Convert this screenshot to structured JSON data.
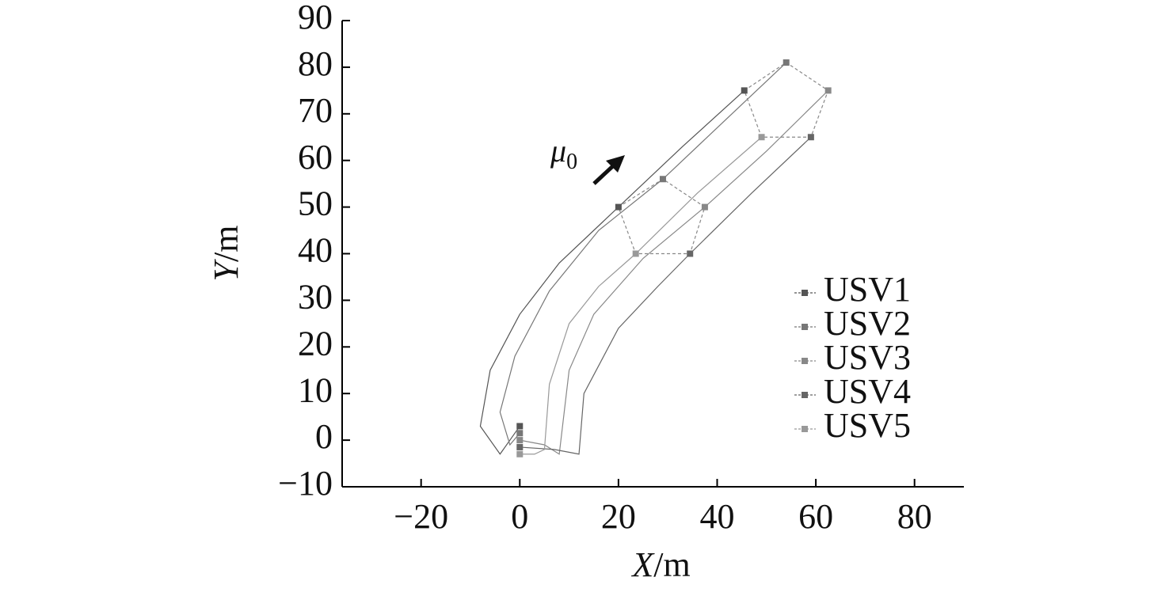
{
  "chart_data": {
    "type": "line",
    "xlabel": {
      "var": "X",
      "unit": "/m"
    },
    "ylabel": {
      "var": "Y",
      "unit": "/m"
    },
    "annotation": {
      "text": "μ",
      "subscript": "0"
    },
    "xlim": [
      -36,
      90
    ],
    "ylim": [
      -10,
      90
    ],
    "xticks": [
      {
        "value": -20,
        "label": "−20"
      },
      0,
      20,
      40,
      60,
      80
    ],
    "yticks": [
      {
        "value": -10,
        "label": "−10"
      },
      0,
      10,
      20,
      30,
      40,
      50,
      60,
      70,
      80,
      90
    ],
    "marker_indices": [
      0,
      6,
      8
    ],
    "series": [
      {
        "name": "USV1",
        "color": "#555555",
        "x": [
          0,
          -4,
          -8,
          -6,
          0,
          8,
          20,
          33,
          45.5
        ],
        "y": [
          3,
          -3,
          3,
          15,
          27,
          38,
          50,
          63,
          75
        ]
      },
      {
        "name": "USV2",
        "color": "#777777",
        "x": [
          0,
          -2,
          -4,
          -1,
          6,
          16,
          29,
          41,
          54
        ],
        "y": [
          1.5,
          -1,
          6,
          18,
          32,
          45,
          56,
          68,
          81
        ]
      },
      {
        "name": "USV3",
        "color": "#888888",
        "x": [
          0,
          5,
          8,
          10,
          15,
          25,
          37.5,
          50,
          62.5
        ],
        "y": [
          0,
          -1,
          -3,
          15,
          27,
          39,
          50,
          62,
          75
        ]
      },
      {
        "name": "USV4",
        "color": "#666666",
        "x": [
          0,
          7,
          12,
          13,
          20,
          28,
          34.5,
          47,
          59
        ],
        "y": [
          -1.5,
          -2,
          -3,
          10,
          24,
          33,
          40,
          53,
          65
        ]
      },
      {
        "name": "USV5",
        "color": "#999999",
        "x": [
          0,
          3,
          5,
          6,
          10,
          16,
          23.5,
          36,
          49
        ],
        "y": [
          -3,
          -3,
          -2,
          12,
          25,
          33,
          40,
          53,
          65
        ]
      }
    ]
  }
}
